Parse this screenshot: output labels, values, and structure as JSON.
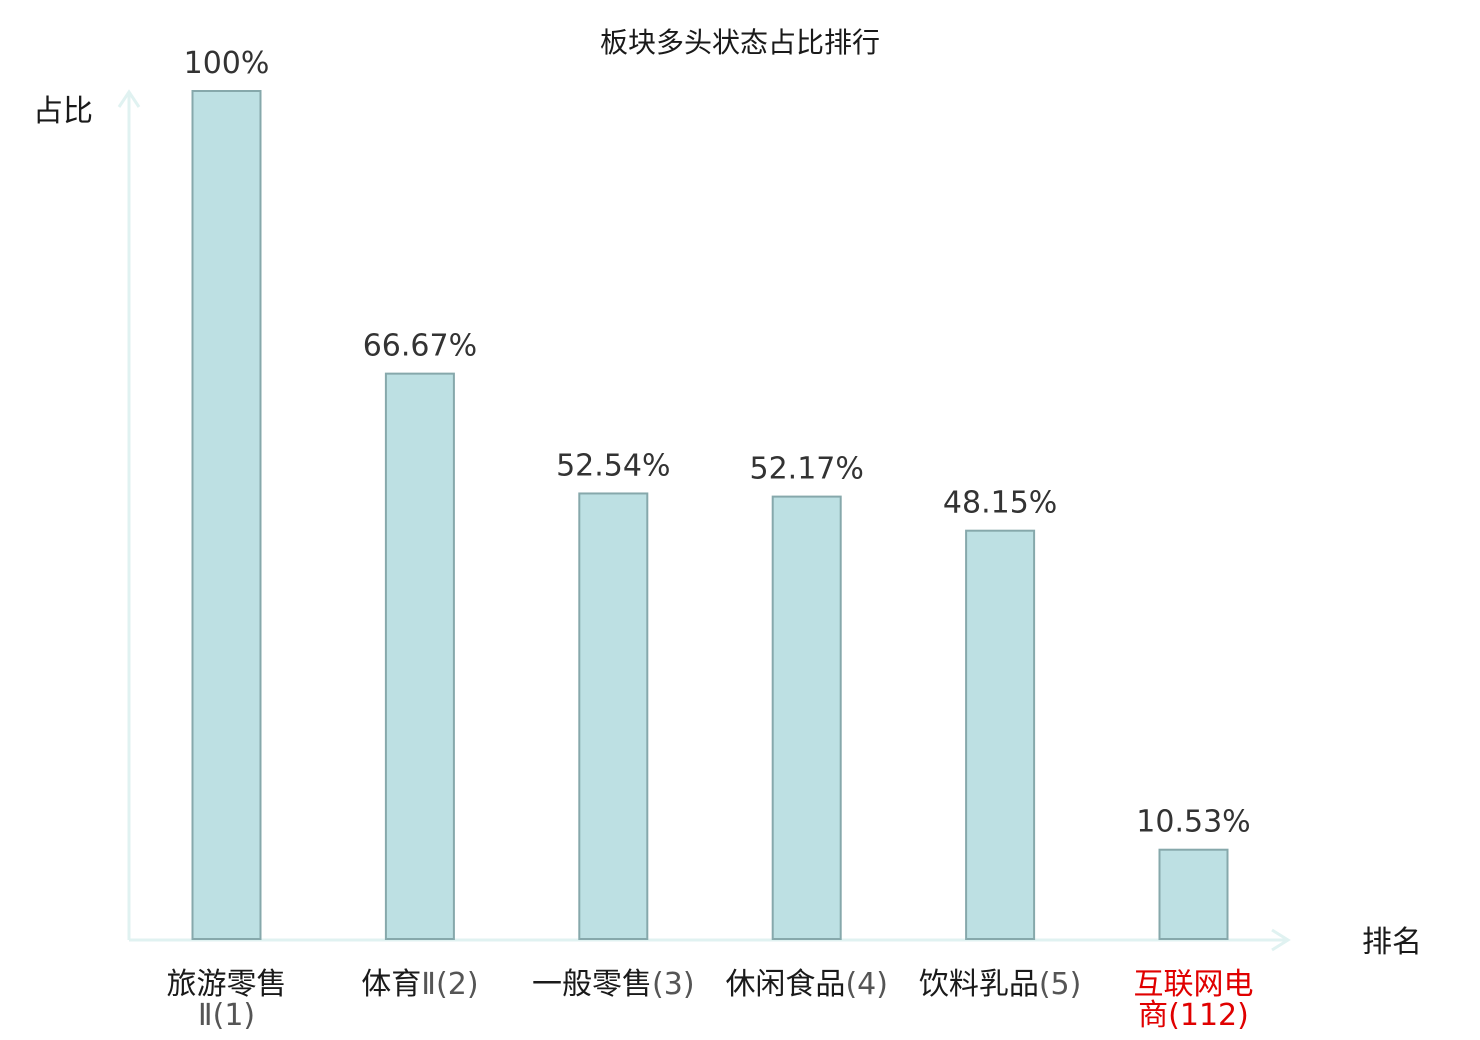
{
  "chart_data": {
    "type": "bar",
    "title": "板块多头状态占比排行",
    "ylabel": "占比",
    "xlabel": "排名",
    "categories": [
      {
        "lines": [
          {
            "name": "旅游零售",
            "rank": ""
          },
          {
            "name": "",
            "rank": "Ⅱ(1)"
          }
        ],
        "highlight": false
      },
      {
        "lines": [
          {
            "name": "体育",
            "rank": "Ⅱ(2)"
          }
        ],
        "highlight": false
      },
      {
        "lines": [
          {
            "name": "一般零售",
            "rank": "(3)"
          }
        ],
        "highlight": false
      },
      {
        "lines": [
          {
            "name": "休闲食品",
            "rank": "(4)"
          }
        ],
        "highlight": false
      },
      {
        "lines": [
          {
            "name": "饮料乳品",
            "rank": "(5)"
          }
        ],
        "highlight": false
      },
      {
        "lines": [
          {
            "name": "互联网电",
            "rank": ""
          },
          {
            "name": "商",
            "rank": "(112)"
          }
        ],
        "highlight": true
      }
    ],
    "values": [
      100,
      66.67,
      52.54,
      52.17,
      48.15,
      10.53
    ],
    "value_labels": [
      "100%",
      "66.67%",
      "52.54%",
      "52.17%",
      "48.15%",
      "10.53%"
    ],
    "ylim": [
      0,
      100
    ],
    "grid": false,
    "colors": {
      "bar_fill": "#bde0e3",
      "bar_stroke": "#86a8ab",
      "axis": "#e0f2f1",
      "highlight": "#e00000",
      "name_text": "#1a1a1a",
      "rank_text": "#555555"
    }
  }
}
